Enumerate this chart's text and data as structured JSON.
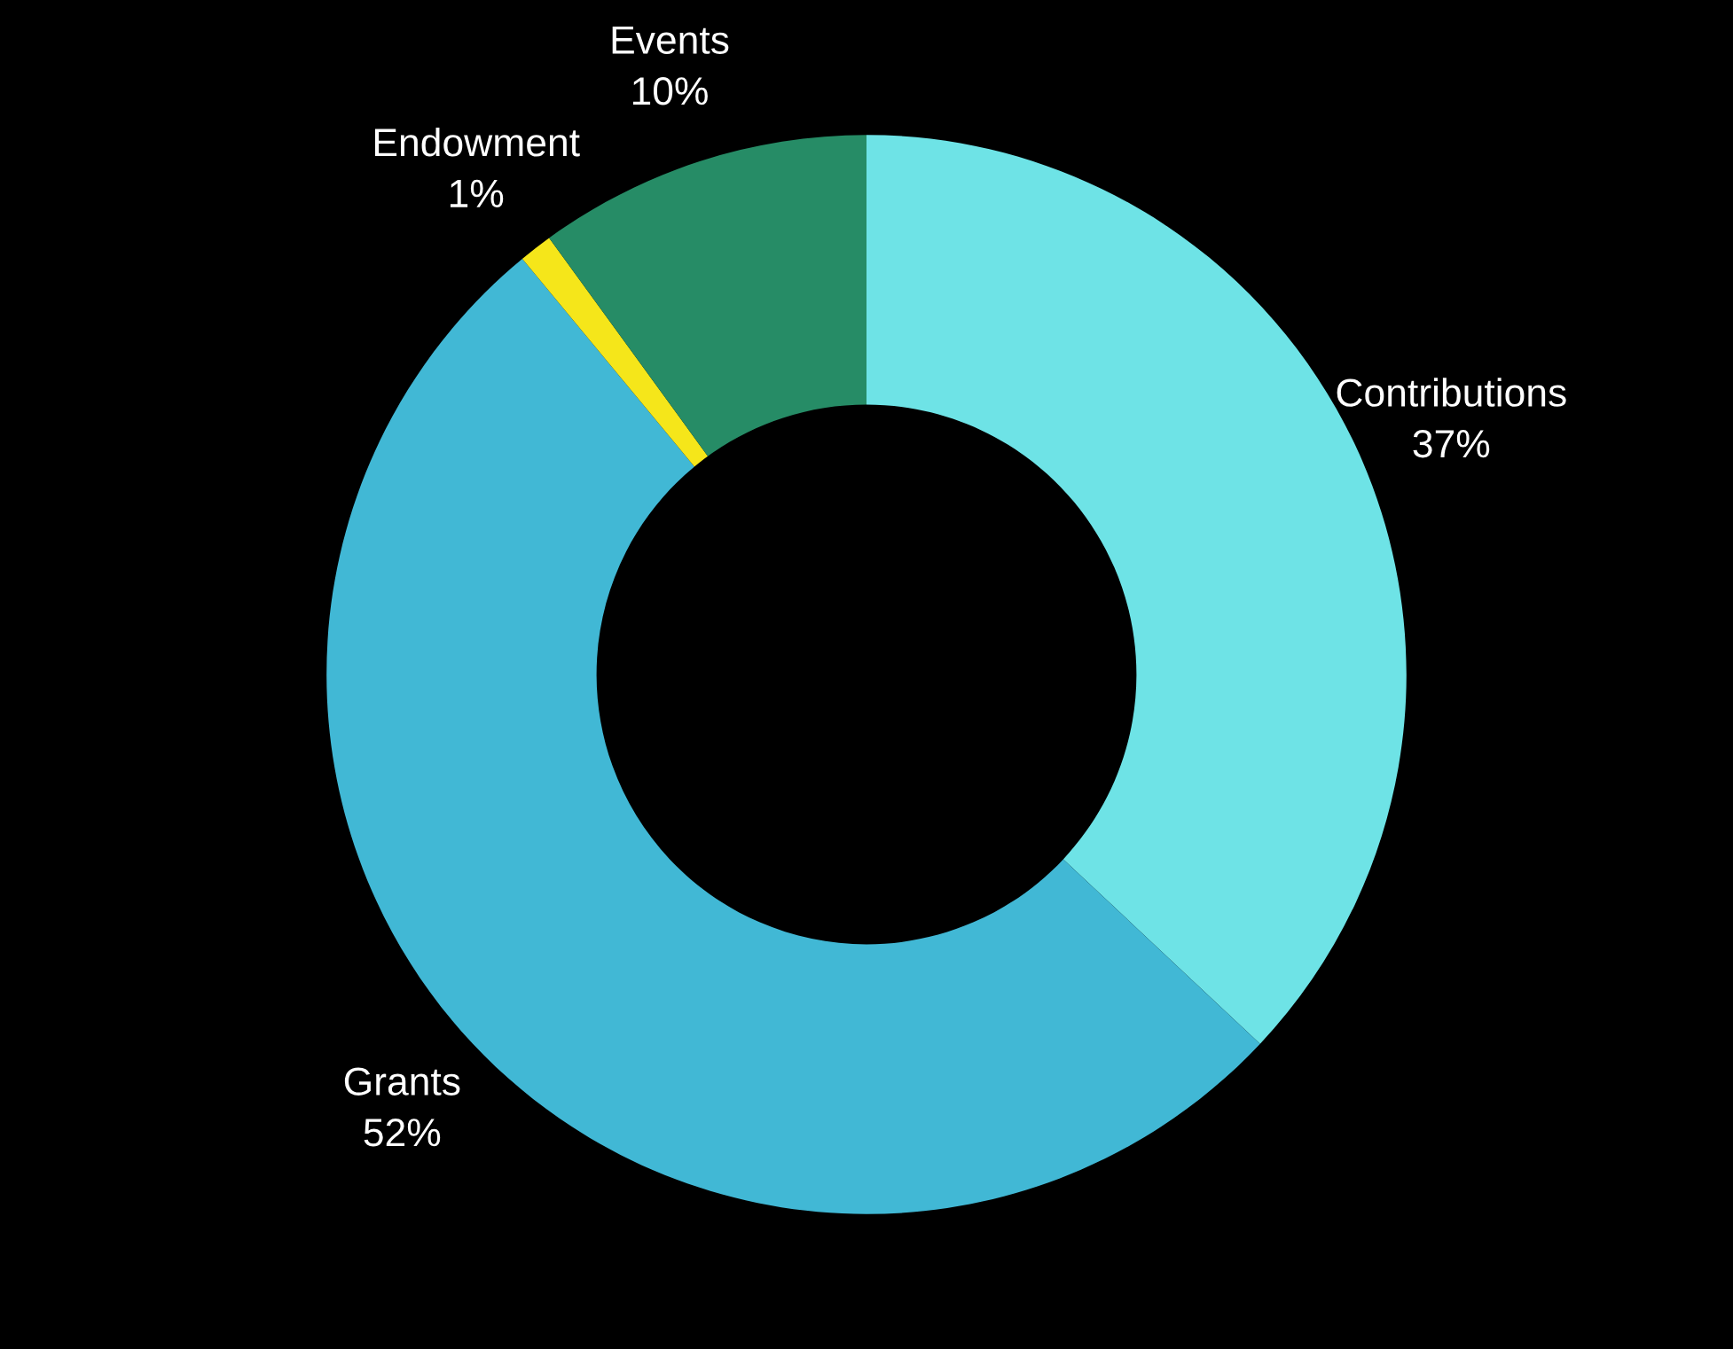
{
  "chart_data": {
    "type": "donut",
    "categories": [
      "Contributions",
      "Grants",
      "Endowment",
      "Events"
    ],
    "values": [
      37,
      52,
      1,
      10
    ],
    "colors": [
      "#6ee3e6",
      "#41b8d5",
      "#f5e61a",
      "#268c66"
    ],
    "value_labels": [
      "37%",
      "52%",
      "1%",
      "10%"
    ]
  }
}
